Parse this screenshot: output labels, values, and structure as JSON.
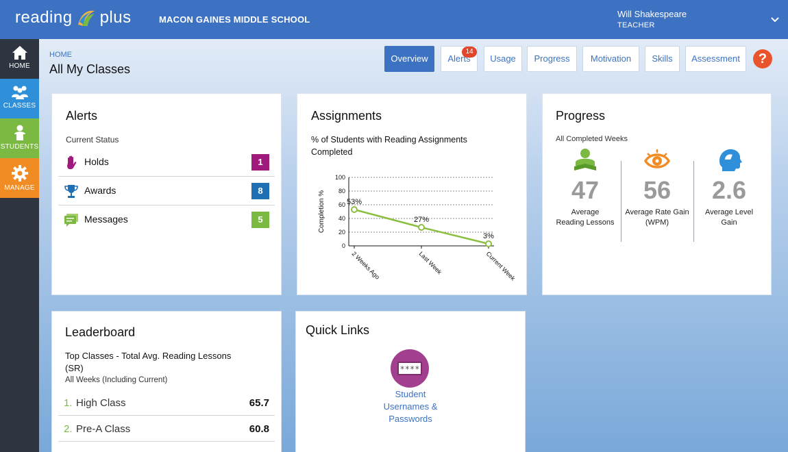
{
  "header": {
    "logo_left": "reading",
    "logo_right": "plus",
    "school": "MACON GAINES MIDDLE SCHOOL",
    "user_name": "Will Shakespeare",
    "user_role": "TEACHER"
  },
  "sidebar": {
    "items": [
      {
        "label": "HOME",
        "icon": "home-icon"
      },
      {
        "label": "CLASSES",
        "icon": "classes-icon"
      },
      {
        "label": "STUDENTS",
        "icon": "student-icon"
      },
      {
        "label": "MANAGE",
        "icon": "gear-icon"
      }
    ]
  },
  "page": {
    "breadcrumb": "HOME",
    "title": "All My Classes"
  },
  "tabs": [
    {
      "label": "Overview",
      "active": true
    },
    {
      "label": "Alerts",
      "badge": "14"
    },
    {
      "label": "Usage"
    },
    {
      "label": "Progress"
    },
    {
      "label": "Motivation"
    },
    {
      "label": "Skills"
    },
    {
      "label": "Assessment"
    }
  ],
  "help": "?",
  "alerts": {
    "title": "Alerts",
    "subtitle": "Current Status",
    "items": [
      {
        "label": "Holds",
        "count": "1",
        "color": "#a01a7d",
        "icon": "hand-icon"
      },
      {
        "label": "Awards",
        "count": "8",
        "color": "#1f6fb5",
        "icon": "trophy-icon"
      },
      {
        "label": "Messages",
        "count": "5",
        "color": "#7bb942",
        "icon": "message-icon"
      }
    ]
  },
  "assignments": {
    "title": "Assignments",
    "subtitle": "% of Students with Reading Assignments Completed"
  },
  "chart_data": {
    "type": "line",
    "categories": [
      "2 Weeks Ago",
      "Last Week",
      "Current Week"
    ],
    "series": [
      {
        "values": [
          53,
          27,
          3
        ]
      }
    ],
    "data_labels": [
      "53%",
      "27%",
      "3%"
    ],
    "ylabel": "Completion %",
    "ylim": [
      0,
      100
    ],
    "yticks": [
      "100",
      "80",
      "60",
      "40",
      "20",
      "0"
    ],
    "grid": true,
    "color": "#8cbf3f"
  },
  "progress": {
    "title": "Progress",
    "subtitle": "All Completed Weeks",
    "metrics": [
      {
        "value": "47",
        "label1": "Average",
        "label2": "Reading Lessons",
        "icon": "reader-icon",
        "color": "#7bb942"
      },
      {
        "value": "56",
        "label1": "Average Rate Gain",
        "label2": "(WPM)",
        "icon": "eye-icon",
        "color": "#f18b24"
      },
      {
        "value": "2.6",
        "label1": "Average Level",
        "label2": "Gain",
        "icon": "head-icon",
        "color": "#2f8fd8"
      }
    ]
  },
  "leaderboard": {
    "title": "Leaderboard",
    "subtitle1": "Top Classes - Total Avg. Reading Lessons",
    "subtitle2": "(SR)",
    "subtitle3": "All Weeks (Including Current)",
    "rows": [
      {
        "rank": "1.",
        "name": "High Class",
        "value": "65.7"
      },
      {
        "rank": "2.",
        "name": "Pre-A Class",
        "value": "60.8"
      }
    ]
  },
  "quick_links": {
    "title": "Quick Links",
    "link_line1": "Student",
    "link_line2": "Usernames &",
    "link_line3": "Passwords",
    "icon_text": "****"
  }
}
